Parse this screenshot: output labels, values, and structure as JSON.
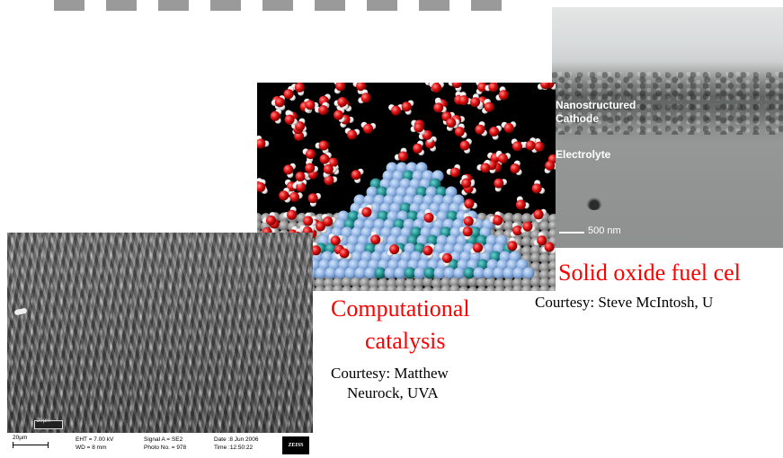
{
  "sem_cross_section": {
    "label_nanostructured": "Nanostructured",
    "label_cathode": "Cathode",
    "label_electrolyte": "Electrolyte",
    "scale": "500 nm"
  },
  "catalysis_caption": {
    "title_line1": "Computational",
    "title_line2": "catalysis",
    "courtesy_line1": "Courtesy:  Matthew",
    "courtesy_line2": "Neurock, UVA"
  },
  "sofc_caption": {
    "title": "Solid oxide fuel cel",
    "courtesy": "Courtesy:  Steve McIntosh, U"
  },
  "spike_image": {
    "inner_scale": "20µm",
    "scale": "20µm",
    "eht": "EHT = 7.00 kV",
    "wd": "WD =   8 mm",
    "signal": "Signal A = SE2",
    "photo_no": "Photo No. = 978",
    "date": "Date :8 Jun 2006",
    "time": "Time :12:50:22",
    "logo": "ZEISS"
  },
  "colors": {
    "caption_red": "#ff0000",
    "molecule_oxygen": "#e01010",
    "molecule_hydrogen": "#f2f2f2",
    "metal_surface": "#8fb3e3",
    "dopant": "#1e8a8a"
  }
}
